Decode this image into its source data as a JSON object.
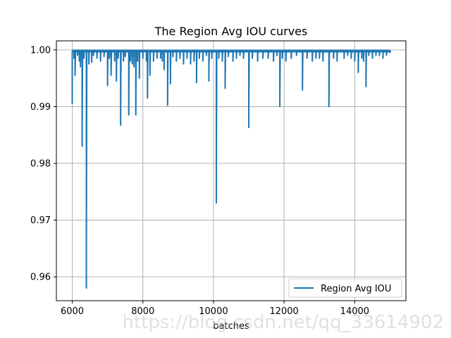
{
  "chart_data": {
    "type": "line",
    "title": "The Region Avg IOU curves",
    "xlabel": "batches",
    "ylabel": "",
    "xlim": [
      5550,
      15450
    ],
    "ylim": [
      0.9558,
      1.0016
    ],
    "xticks": [
      6000,
      8000,
      10000,
      12000,
      14000
    ],
    "yticks": [
      0.96,
      0.97,
      0.98,
      0.99,
      1.0
    ],
    "ytick_labels": [
      "0.96",
      "0.97",
      "0.98",
      "0.99",
      "1.00"
    ],
    "grid": true,
    "legend_position": "lower-right",
    "baseline": 0.9998,
    "series": [
      {
        "name": "Region Avg IOU",
        "color": "#1f77b4",
        "x_range": [
          6000,
          15000
        ],
        "dips": [
          [
            6000,
            0.9905
          ],
          [
            6050,
            0.9985
          ],
          [
            6080,
            0.9955
          ],
          [
            6150,
            0.999
          ],
          [
            6200,
            0.998
          ],
          [
            6230,
            0.997
          ],
          [
            6280,
            0.983
          ],
          [
            6330,
            0.9985
          ],
          [
            6400,
            0.958
          ],
          [
            6470,
            0.9975
          ],
          [
            6550,
            0.9978
          ],
          [
            6600,
            0.999
          ],
          [
            6700,
            0.9985
          ],
          [
            6800,
            0.998
          ],
          [
            6900,
            0.9988
          ],
          [
            7000,
            0.9937
          ],
          [
            7050,
            0.9985
          ],
          [
            7100,
            0.9955
          ],
          [
            7200,
            0.998
          ],
          [
            7250,
            0.9945
          ],
          [
            7300,
            0.9985
          ],
          [
            7370,
            0.9867
          ],
          [
            7450,
            0.998
          ],
          [
            7500,
            0.9988
          ],
          [
            7600,
            0.9885
          ],
          [
            7650,
            0.998
          ],
          [
            7700,
            0.9975
          ],
          [
            7750,
            0.997
          ],
          [
            7800,
            0.9885
          ],
          [
            7850,
            0.998
          ],
          [
            7900,
            0.995
          ],
          [
            8000,
            0.9985
          ],
          [
            8100,
            0.998
          ],
          [
            8130,
            0.9915
          ],
          [
            8200,
            0.9955
          ],
          [
            8300,
            0.998
          ],
          [
            8400,
            0.9985
          ],
          [
            8500,
            0.9985
          ],
          [
            8550,
            0.998
          ],
          [
            8600,
            0.9965
          ],
          [
            8700,
            0.9902
          ],
          [
            8780,
            0.994
          ],
          [
            8850,
            0.9988
          ],
          [
            8950,
            0.998
          ],
          [
            9050,
            0.9985
          ],
          [
            9150,
            0.9975
          ],
          [
            9250,
            0.9985
          ],
          [
            9350,
            0.9975
          ],
          [
            9450,
            0.998
          ],
          [
            9520,
            0.9942
          ],
          [
            9600,
            0.9985
          ],
          [
            9700,
            0.998
          ],
          [
            9800,
            0.999
          ],
          [
            9870,
            0.9945
          ],
          [
            9950,
            0.9985
          ],
          [
            10080,
            0.973
          ],
          [
            10150,
            0.9985
          ],
          [
            10250,
            0.998
          ],
          [
            10330,
            0.9932
          ],
          [
            10420,
            0.9988
          ],
          [
            10550,
            0.998
          ],
          [
            10650,
            0.9985
          ],
          [
            10750,
            0.999
          ],
          [
            10850,
            0.9985
          ],
          [
            11000,
            0.9863
          ],
          [
            11100,
            0.9985
          ],
          [
            11250,
            0.998
          ],
          [
            11400,
            0.9985
          ],
          [
            11550,
            0.9985
          ],
          [
            11700,
            0.998
          ],
          [
            11800,
            0.999
          ],
          [
            11880,
            0.99
          ],
          [
            11950,
            0.9985
          ],
          [
            12050,
            0.998
          ],
          [
            12200,
            0.9985
          ],
          [
            12350,
            0.999
          ],
          [
            12520,
            0.9929
          ],
          [
            12650,
            0.9985
          ],
          [
            12800,
            0.998
          ],
          [
            12900,
            0.9985
          ],
          [
            13000,
            0.9985
          ],
          [
            13100,
            0.998
          ],
          [
            13270,
            0.99
          ],
          [
            13400,
            0.9985
          ],
          [
            13500,
            0.998
          ],
          [
            13700,
            0.9985
          ],
          [
            13800,
            0.999
          ],
          [
            13900,
            0.9985
          ],
          [
            14000,
            0.998
          ],
          [
            14100,
            0.996
          ],
          [
            14200,
            0.9985
          ],
          [
            14250,
            0.998
          ],
          [
            14320,
            0.9935
          ],
          [
            14400,
            0.999
          ],
          [
            14500,
            0.9985
          ],
          [
            14600,
            0.999
          ],
          [
            14700,
            0.999
          ],
          [
            14800,
            0.9985
          ],
          [
            14900,
            0.999
          ],
          [
            15000,
            0.9995
          ]
        ]
      }
    ]
  },
  "watermark_text": "https://blog.csdn.net/qq_33614902"
}
